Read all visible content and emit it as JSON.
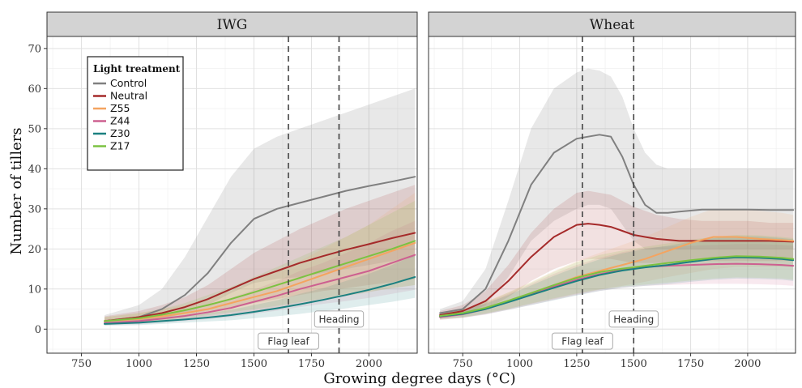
{
  "chart_data": {
    "type": "line",
    "xlabel": "Growing degree days (°C)",
    "ylabel": "Number of tillers",
    "xlim": [
      600,
      2210
    ],
    "ylim": [
      -6,
      73
    ],
    "x_ticks": [
      750,
      1000,
      1250,
      1500,
      1750,
      2000
    ],
    "y_ticks": [
      0,
      10,
      20,
      30,
      40,
      50,
      60,
      70
    ],
    "grid": true,
    "legend": {
      "title": "Light treatment",
      "placement": "top-left inside first panel",
      "entries": [
        "Control",
        "Neutral",
        "Z55",
        "Z44",
        "Z30",
        "Z17"
      ]
    },
    "colors": {
      "Control": "#808080",
      "Neutral": "#a52a2a",
      "Z55": "#f4a460",
      "Z44": "#cd6090",
      "Z30": "#1b8080",
      "Z17": "#7cc242"
    },
    "panels": [
      {
        "title": "IWG",
        "vlines": [
          {
            "x": 1650,
            "label": "Flag leaf",
            "label_y": -3
          },
          {
            "x": 1870,
            "label": "Heading",
            "label_y": 2.5
          }
        ],
        "series": [
          {
            "name": "Control",
            "x": [
              850,
              1000,
              1100,
              1200,
              1300,
              1400,
              1500,
              1600,
              1700,
              1800,
              1900,
              2000,
              2100,
              2200
            ],
            "y": [
              2,
              3,
              5,
              8.5,
              14,
              21.5,
              27.5,
              30,
              31.5,
              33,
              34.5,
              35.7,
              36.8,
              38
            ],
            "lower": [
              1,
              1.5,
              2.5,
              4,
              6,
              9,
              11.5,
              12.5,
              13,
              14,
              15,
              16,
              17,
              18
            ],
            "upper": [
              3.5,
              6,
              10,
              18,
              28,
              38,
              45,
              48,
              50,
              52,
              54,
              56,
              58,
              60
            ]
          },
          {
            "name": "Neutral",
            "x": [
              850,
              1000,
              1100,
              1200,
              1300,
              1400,
              1500,
              1600,
              1700,
              1800,
              1900,
              2000,
              2100,
              2200
            ],
            "y": [
              2,
              3,
              4,
              5.5,
              7.5,
              10,
              12.5,
              14.5,
              16.5,
              18.2,
              19.8,
              21.2,
              22.7,
              24
            ],
            "lower": [
              1.2,
              1.8,
              2.5,
              3.5,
              4.5,
              5.5,
              6.5,
              7.5,
              8.5,
              9.5,
              10.2,
              11,
              11.7,
              12.5
            ],
            "upper": [
              3.2,
              4.5,
              6,
              8,
              11,
              15,
              19,
              22,
              25,
              27.5,
              30,
              32,
              34,
              36
            ]
          },
          {
            "name": "Z55",
            "x": [
              850,
              1000,
              1100,
              1200,
              1300,
              1400,
              1500,
              1600,
              1700,
              1800,
              1900,
              2000,
              2100,
              2200
            ],
            "y": [
              2,
              2.5,
              3.2,
              4,
              5,
              6.5,
              8,
              9.5,
              11.5,
              13.5,
              15.5,
              17.5,
              19.5,
              21.5
            ],
            "lower": [
              1.2,
              1.5,
              2,
              2.5,
              3,
              3.8,
              4.5,
              5.3,
              6.3,
              7.3,
              8.2,
              9.2,
              10.2,
              11
            ],
            "upper": [
              3,
              4,
              5,
              6,
              7.5,
              9.5,
              12,
              14.5,
              17,
              20,
              23,
              26,
              30,
              34
            ]
          },
          {
            "name": "Z44",
            "x": [
              850,
              1000,
              1100,
              1200,
              1300,
              1400,
              1500,
              1600,
              1700,
              1800,
              1900,
              2000,
              2100,
              2200
            ],
            "y": [
              1.5,
              2,
              2.6,
              3.3,
              4.2,
              5.3,
              6.8,
              8.3,
              10,
              11.5,
              13,
              14.5,
              16.5,
              18.5
            ],
            "lower": [
              1,
              1.2,
              1.6,
              2,
              2.5,
              3,
              3.8,
              4.6,
              5.5,
              6.3,
              7,
              7.8,
              8.8,
              9.8
            ],
            "upper": [
              2.5,
              3,
              3.8,
              4.8,
              6,
              7.8,
              9.8,
              12,
              14.5,
              16.5,
              19,
              21.5,
              24.5,
              27
            ]
          },
          {
            "name": "Z30",
            "x": [
              850,
              1000,
              1100,
              1200,
              1300,
              1400,
              1500,
              1600,
              1700,
              1800,
              1900,
              2000,
              2100,
              2200
            ],
            "y": [
              1.3,
              1.6,
              2,
              2.4,
              2.9,
              3.5,
              4.3,
              5.2,
              6.2,
              7.3,
              8.5,
              9.8,
              11.3,
              13
            ],
            "lower": [
              0.8,
              1,
              1.3,
              1.6,
              1.9,
              2.2,
              2.7,
              3.2,
              3.8,
              4.5,
              5.2,
              6,
              6.8,
              7.8
            ],
            "upper": [
              2,
              2.4,
              2.8,
              3.3,
              4,
              4.8,
              6,
              7.2,
              8.8,
              10.2,
              12,
              13.8,
              16,
              18.5
            ]
          },
          {
            "name": "Z17",
            "x": [
              850,
              1000,
              1100,
              1200,
              1300,
              1400,
              1500,
              1600,
              1700,
              1800,
              1900,
              2000,
              2100,
              2200
            ],
            "y": [
              2,
              2.7,
              3.6,
              4.7,
              6,
              7.5,
              9.2,
              11,
              12.8,
              14.6,
              16.4,
              18.2,
              20,
              22
            ],
            "lower": [
              1.2,
              1.6,
              2.2,
              2.8,
              3.5,
              4.2,
              5,
              5.8,
              6.7,
              7.6,
              8.4,
              9.3,
              10.2,
              11
            ],
            "upper": [
              3,
              4,
              5,
              6.5,
              8.5,
              10.5,
              13,
              15.5,
              18,
              20.5,
              23,
              26,
              29,
              32
            ]
          }
        ]
      },
      {
        "title": "Wheat",
        "vlines": [
          {
            "x": 1275,
            "label": "Flag leaf",
            "label_y": -3
          },
          {
            "x": 1500,
            "label": "Heading",
            "label_y": 2.5
          }
        ],
        "series": [
          {
            "name": "Control",
            "x": [
              650,
              750,
              850,
              950,
              1050,
              1150,
              1250,
              1300,
              1350,
              1400,
              1450,
              1500,
              1550,
              1600,
              1650,
              1700,
              1800,
              1900,
              2000,
              2100,
              2200
            ],
            "y": [
              4,
              5,
              10,
              22,
              36,
              44,
              47.5,
              48,
              48.5,
              48,
              43,
              36,
              31,
              29,
              29,
              29.3,
              29.8,
              29.8,
              29.8,
              29.7,
              29.7
            ],
            "lower": [
              3,
              3.5,
              6,
              13,
              22,
              27,
              30,
              31,
              31,
              30,
              26,
              22,
              20,
              20,
              20,
              20,
              20,
              20,
              20,
              20,
              20
            ],
            "upper": [
              5,
              7,
              15,
              32,
              50,
              60,
              64,
              65,
              64.5,
              63,
              58,
              50,
              44,
              41,
              40,
              40,
              40,
              40,
              40,
              40,
              40
            ]
          },
          {
            "name": "Neutral",
            "x": [
              650,
              750,
              850,
              950,
              1050,
              1150,
              1250,
              1300,
              1350,
              1400,
              1450,
              1500,
              1550,
              1600,
              1700,
              1800,
              1900,
              2000,
              2100,
              2200
            ],
            "y": [
              3.5,
              4.5,
              7,
              12,
              18,
              23,
              26,
              26.3,
              26,
              25.5,
              24.5,
              23.5,
              23,
              22.5,
              22,
              22,
              22,
              22,
              22,
              21.8
            ],
            "lower": [
              2.8,
              3.5,
              5,
              8,
              12,
              15,
              17,
              17.5,
              17.5,
              17.5,
              17,
              16.5,
              16.5,
              16.5,
              16.5,
              17,
              17,
              17,
              17,
              17
            ],
            "upper": [
              4.5,
              6,
              9.5,
              16,
              24,
              30,
              34,
              34.5,
              34,
              33.5,
              32,
              30.5,
              29.5,
              28.5,
              27.5,
              27,
              27,
              27,
              26.5,
              26.5
            ]
          },
          {
            "name": "Z55",
            "x": [
              650,
              750,
              850,
              950,
              1050,
              1150,
              1250,
              1350,
              1450,
              1550,
              1650,
              1750,
              1850,
              1950,
              2050,
              2150,
              2200
            ],
            "y": [
              3,
              3.8,
              5.2,
              7,
              9,
              11,
              13,
              14.5,
              16,
              17.5,
              19.5,
              21.5,
              23,
              23,
              22.5,
              22.2,
              22
            ],
            "lower": [
              2.3,
              2.8,
              3.8,
              5,
              6.3,
              7.5,
              8.7,
              9.8,
              10.8,
              11.8,
              13,
              14,
              15,
              15.5,
              15.5,
              15.5,
              15.5
            ],
            "upper": [
              3.8,
              5,
              6.8,
              9.2,
              11.8,
              14.5,
              17,
              19,
              21,
              23,
              25.5,
              28,
              30,
              30,
              29.5,
              29,
              28.5
            ]
          },
          {
            "name": "Z44",
            "x": [
              650,
              750,
              850,
              950,
              1050,
              1150,
              1250,
              1350,
              1450,
              1550,
              1650,
              1750,
              1850,
              1950,
              2050,
              2150,
              2200
            ],
            "y": [
              3,
              3.7,
              5,
              6.8,
              8.7,
              10.6,
              12.3,
              13.7,
              14.8,
              15.5,
              15.8,
              16,
              16.2,
              16.3,
              16.2,
              16,
              15.8
            ],
            "lower": [
              2.3,
              2.8,
              3.6,
              4.8,
              6,
              7.3,
              8.5,
              9.5,
              10.3,
              10.8,
              11,
              11.2,
              11.3,
              11.3,
              11.2,
              11,
              10.8
            ],
            "upper": [
              3.8,
              4.8,
              6.5,
              8.8,
              11.3,
              13.8,
              16,
              17.8,
              19.2,
              20.2,
              20.6,
              20.8,
              21,
              21.2,
              21.2,
              21,
              20.8
            ]
          },
          {
            "name": "Z30",
            "x": [
              650,
              750,
              850,
              950,
              1050,
              1150,
              1250,
              1350,
              1450,
              1550,
              1650,
              1750,
              1850,
              1950,
              2050,
              2150,
              2200
            ],
            "y": [
              3.2,
              3.8,
              5,
              6.7,
              8.5,
              10.3,
              12,
              13.5,
              14.6,
              15.4,
              16,
              16.8,
              17.5,
              17.9,
              17.8,
              17.5,
              17.2
            ],
            "lower": [
              2.5,
              2.9,
              3.7,
              4.8,
              6,
              7.2,
              8.4,
              9.5,
              10.3,
              10.8,
              11.2,
              11.8,
              12.3,
              12.6,
              12.5,
              12.3,
              12
            ],
            "upper": [
              4,
              4.8,
              6.3,
              8.5,
              10.9,
              13.3,
              15.5,
              17.4,
              18.9,
              20,
              20.8,
              21.8,
              22.7,
              23.2,
              23.1,
              22.7,
              22.4
            ]
          },
          {
            "name": "Z17",
            "x": [
              650,
              750,
              850,
              950,
              1050,
              1150,
              1250,
              1350,
              1450,
              1550,
              1650,
              1750,
              1850,
              1950,
              2050,
              2150,
              2200
            ],
            "y": [
              3.3,
              4,
              5.3,
              7.1,
              9,
              11,
              12.8,
              14.2,
              15.1,
              15.8,
              16.5,
              17.2,
              17.8,
              18.2,
              18.1,
              17.8,
              17.5
            ],
            "lower": [
              2.5,
              3,
              3.9,
              5.1,
              6.4,
              7.7,
              8.9,
              9.9,
              10.6,
              11.1,
              11.6,
              12.1,
              12.6,
              12.9,
              12.8,
              12.6,
              12.3
            ],
            "upper": [
              4.1,
              5,
              6.7,
              9.1,
              11.6,
              14.3,
              16.7,
              18.5,
              19.6,
              20.5,
              21.4,
              22.3,
              23,
              23.5,
              23.4,
              23,
              22.7
            ]
          }
        ]
      }
    ]
  }
}
